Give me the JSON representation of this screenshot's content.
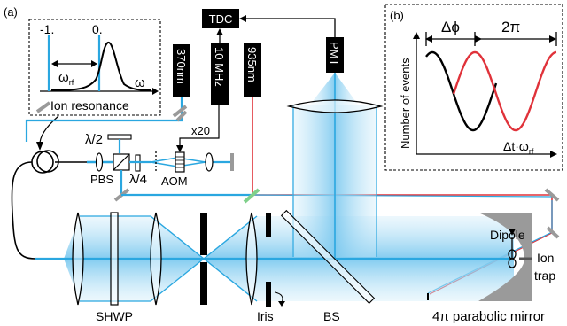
{
  "panel_a": {
    "label": "(a)",
    "ion_resonance": {
      "tick_left": "-1.",
      "tick_right": "0.",
      "omega_rf": "ω",
      "omega_rf_sub": "rf",
      "omega_axis": "ω",
      "caption": "Ion resonance"
    },
    "boxes": {
      "tdc": "TDC",
      "pmt": "PMT",
      "laser_370": "370nm",
      "clock_10mhz": "10 MHz",
      "laser_935": "935nm"
    },
    "labels": {
      "x20": "x20",
      "lambda_half": "λ/2",
      "lambda_quarter": "λ/4",
      "pbs": "PBS",
      "aom": "AOM",
      "dipole": "Dipole",
      "ion_trap_1": "Ion",
      "ion_trap_2": "trap",
      "shwp": "SHWP",
      "iris": "Iris",
      "bs": "BS",
      "mirror": "4π parabolic mirror"
    },
    "colors": {
      "beam_370": "#2aa7e0",
      "beam_935": "#e0323a",
      "beam_glow": "#9fd9f5",
      "fluorescence": "#bfe6f8",
      "optics_gray": "#9a9a9a",
      "dichroic": "#7fd08a"
    }
  },
  "panel_b": {
    "label": "(b)",
    "delta_phi": "Δϕ",
    "two_pi": "2π",
    "ylabel": "Number of events",
    "xlabel": "Δt·ω",
    "xlabel_sub": "rf",
    "black_curve": "#000000",
    "red_curve": "#e0323a"
  }
}
